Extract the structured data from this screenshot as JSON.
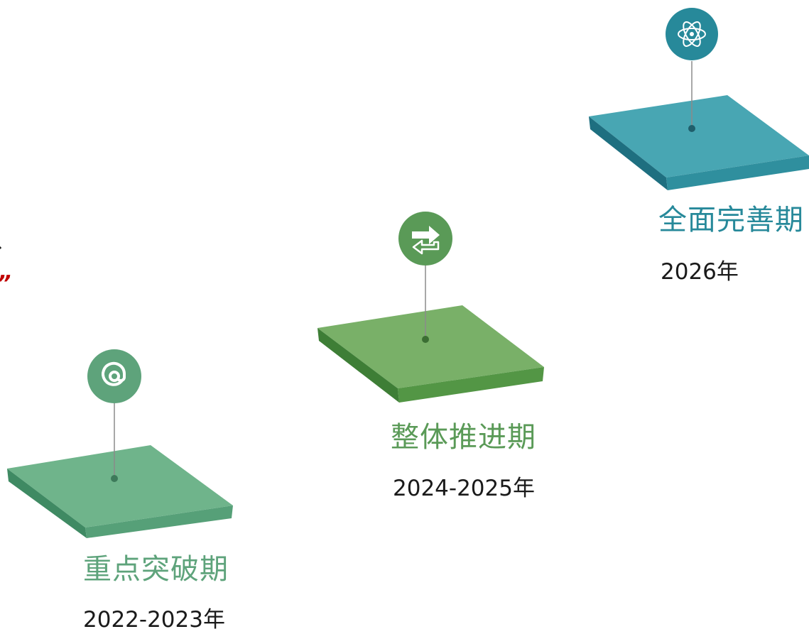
{
  "stages": [
    {
      "title": "重点突破期",
      "year": "2022-2023年",
      "icon": "at-sign-icon",
      "color": "#5ea37b"
    },
    {
      "title": "整体推进期",
      "year": "2024-2025年",
      "icon": "swap-arrows-icon",
      "color": "#5a9a57"
    },
    {
      "title": "全面完善期",
      "year": "2026年",
      "icon": "atom-icon",
      "color": "#27899a"
    }
  ],
  "edge_fragments": {
    "comma": "、",
    "quote": "”"
  },
  "colors": {
    "quote_red": "#c00000",
    "text_dark": "#1a1a1a",
    "stem": "#8a8a8a"
  }
}
